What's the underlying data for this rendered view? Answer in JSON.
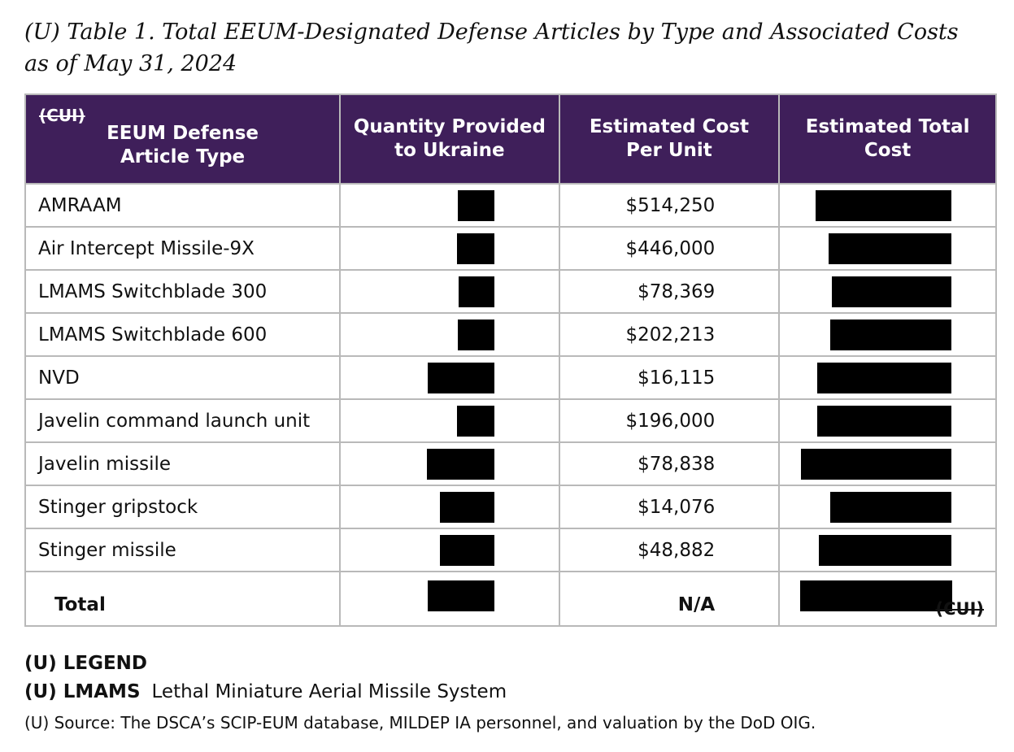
{
  "title": {
    "line1": "(U) Table 1.  Total EEUM-Designated Defense Articles by Type and Associated Costs",
    "line2": "as of May 31, 2024"
  },
  "table": {
    "cui_marking_top": "(CUI)",
    "headers": {
      "col1_line1": "EEUM Defense",
      "col1_line2": "Article Type",
      "col2_line1": "Quantity Provided",
      "col2_line2": "to Ukraine",
      "col3_line1": "Estimated Cost",
      "col3_line2": "Per Unit",
      "col4_line1": "Estimated Total",
      "col4_line2": "Cost"
    },
    "rows": [
      {
        "type": "AMRAAM",
        "cost_per_unit": "$514,250"
      },
      {
        "type": "Air Intercept Missile-9X",
        "cost_per_unit": "$446,000"
      },
      {
        "type": "LMAMS Switchblade 300",
        "cost_per_unit": "$78,369"
      },
      {
        "type": "LMAMS Switchblade 600",
        "cost_per_unit": "$202,213"
      },
      {
        "type": "NVD",
        "cost_per_unit": "$16,115"
      },
      {
        "type": "Javelin command launch unit",
        "cost_per_unit": "$196,000"
      },
      {
        "type": "Javelin missile",
        "cost_per_unit": "$78,838"
      },
      {
        "type": "Stinger gripstock",
        "cost_per_unit": "$14,076"
      },
      {
        "type": "Stinger missile",
        "cost_per_unit": "$48,882"
      }
    ],
    "total_row": {
      "label": "Total",
      "cost_per_unit": "N/A"
    },
    "cui_marking_bottom": "(CUI)"
  },
  "legend": {
    "heading": "(U) LEGEND",
    "term": "(U) LMAMS",
    "definition": "Lethal Miniature Aerial Missile System",
    "source": "(U) Source:  The DSCA’s SCIP-EUM database, MILDEP IA personnel, and valuation by the DoD OIG."
  },
  "colors": {
    "header_background": "#3f1f5a",
    "border": "#b9b9b9",
    "redaction": "#000000"
  }
}
